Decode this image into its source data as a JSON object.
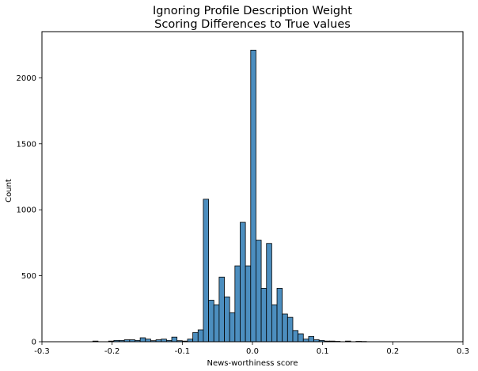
{
  "chart_data": {
    "type": "bar",
    "title": [
      "Ignoring Profile Description Weight",
      "Scoring Differences to True values"
    ],
    "xlabel": "News-worthiness score",
    "ylabel": "Count",
    "xlim": [
      -0.3,
      0.3
    ],
    "ylim": [
      0,
      2350
    ],
    "x_ticks": [
      -0.3,
      -0.2,
      -0.1,
      0.0,
      0.1,
      0.2,
      0.3
    ],
    "x_tick_labels": [
      "-0.3",
      "-0.2",
      "-0.1",
      "0.0",
      "0.1",
      "0.2",
      "0.3"
    ],
    "y_ticks": [
      0,
      500,
      1000,
      1500,
      2000
    ],
    "y_tick_labels": [
      "0",
      "500",
      "1000",
      "1500",
      "2000"
    ],
    "bin_width": 0.0075,
    "color": "#4c8ebf",
    "edge_color": "#000000",
    "bins": [
      {
        "x": -0.2275,
        "count": 5
      },
      {
        "x": -0.205,
        "count": 5
      },
      {
        "x": -0.1975,
        "count": 10
      },
      {
        "x": -0.19,
        "count": 10
      },
      {
        "x": -0.1825,
        "count": 15
      },
      {
        "x": -0.175,
        "count": 15
      },
      {
        "x": -0.1675,
        "count": 10
      },
      {
        "x": -0.16,
        "count": 30
      },
      {
        "x": -0.1525,
        "count": 20
      },
      {
        "x": -0.145,
        "count": 8
      },
      {
        "x": -0.1375,
        "count": 15
      },
      {
        "x": -0.13,
        "count": 20
      },
      {
        "x": -0.1225,
        "count": 10
      },
      {
        "x": -0.115,
        "count": 35
      },
      {
        "x": -0.1075,
        "count": 8
      },
      {
        "x": -0.1,
        "count": 5
      },
      {
        "x": -0.0925,
        "count": 20
      },
      {
        "x": -0.085,
        "count": 70
      },
      {
        "x": -0.0775,
        "count": 90
      },
      {
        "x": -0.07,
        "count": 1080
      },
      {
        "x": -0.0625,
        "count": 315
      },
      {
        "x": -0.055,
        "count": 280
      },
      {
        "x": -0.0475,
        "count": 490
      },
      {
        "x": -0.04,
        "count": 340
      },
      {
        "x": -0.0325,
        "count": 220
      },
      {
        "x": -0.025,
        "count": 575
      },
      {
        "x": -0.0175,
        "count": 905
      },
      {
        "x": -0.01,
        "count": 575
      },
      {
        "x": -0.0025,
        "count": 2210
      },
      {
        "x": 0.005,
        "count": 770
      },
      {
        "x": 0.0125,
        "count": 405
      },
      {
        "x": 0.02,
        "count": 745
      },
      {
        "x": 0.0275,
        "count": 280
      },
      {
        "x": 0.035,
        "count": 405
      },
      {
        "x": 0.0425,
        "count": 210
      },
      {
        "x": 0.05,
        "count": 185
      },
      {
        "x": 0.0575,
        "count": 85
      },
      {
        "x": 0.065,
        "count": 60
      },
      {
        "x": 0.0725,
        "count": 20
      },
      {
        "x": 0.08,
        "count": 40
      },
      {
        "x": 0.0875,
        "count": 15
      },
      {
        "x": 0.095,
        "count": 10
      },
      {
        "x": 0.1025,
        "count": 5
      },
      {
        "x": 0.11,
        "count": 5
      },
      {
        "x": 0.1175,
        "count": 3
      },
      {
        "x": 0.1325,
        "count": 5
      },
      {
        "x": 0.1475,
        "count": 3
      },
      {
        "x": 0.155,
        "count": 2
      }
    ]
  }
}
